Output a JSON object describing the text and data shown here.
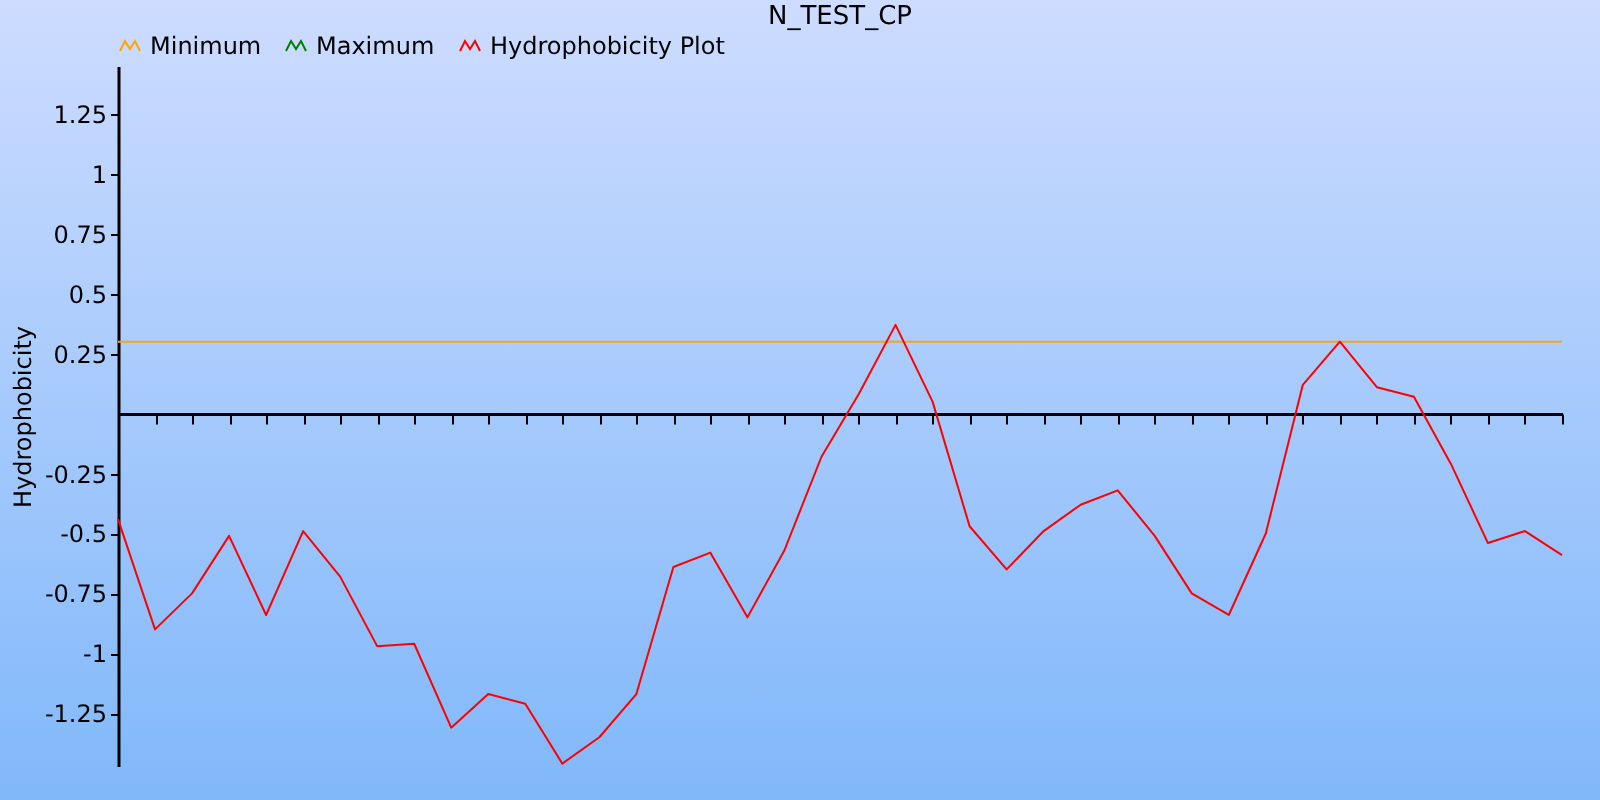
{
  "chart_data": {
    "type": "line",
    "title": "N_TEST_CP",
    "ylabel": "Hydrophobicity",
    "categories": [
      null,
      null,
      null,
      null,
      null,
      null,
      null,
      null,
      null,
      null,
      null,
      null,
      null,
      null,
      null,
      null,
      null,
      null,
      null,
      null,
      null,
      null,
      null,
      null,
      null,
      null,
      null,
      null,
      null,
      null,
      null,
      null,
      null,
      null,
      null,
      null,
      null,
      null,
      null,
      null
    ],
    "series": [
      {
        "name": "Minimum",
        "color": "#ffa500",
        "values": [
          0.3,
          0.3,
          0.3,
          0.3,
          0.3,
          0.3,
          0.3,
          0.3,
          0.3,
          0.3,
          0.3,
          0.3,
          0.3,
          0.3,
          0.3,
          0.3,
          0.3,
          0.3,
          0.3,
          0.3,
          0.3,
          0.3,
          0.3,
          0.3,
          0.3,
          0.3,
          0.3,
          0.3,
          0.3,
          0.3,
          0.3,
          0.3,
          0.3,
          0.3,
          0.3,
          0.3,
          0.3,
          0.3,
          0.3,
          0.3
        ]
      },
      {
        "name": "Maximum",
        "color": "#008000",
        "values": [
          null,
          null,
          null,
          null,
          null,
          null,
          null,
          null,
          null,
          null,
          null,
          null,
          null,
          null,
          null,
          null,
          null,
          null,
          null,
          null,
          null,
          null,
          null,
          null,
          null,
          null,
          null,
          null,
          null,
          null,
          null,
          null,
          null,
          null,
          null,
          null,
          null,
          null,
          null,
          null
        ]
      },
      {
        "name": "Hydrophobicity Plot",
        "color": "#ff0000",
        "values": [
          -0.44,
          -0.9,
          -0.75,
          -0.51,
          -0.84,
          -0.49,
          -0.68,
          -0.97,
          -0.96,
          -1.31,
          -1.17,
          -1.21,
          -1.46,
          -1.35,
          -1.17,
          -0.64,
          -0.58,
          -0.85,
          -0.57,
          -0.18,
          0.08,
          0.37,
          0.05,
          -0.47,
          -0.65,
          -0.49,
          -0.38,
          -0.32,
          -0.51,
          -0.75,
          -0.84,
          -0.5,
          0.12,
          0.3,
          0.11,
          0.07,
          -0.21,
          -0.54,
          -0.49,
          -0.59
        ]
      }
    ],
    "ylim": [
      -1.47,
      1.45
    ],
    "yticks": [
      -1.25,
      -1,
      -0.75,
      -0.5,
      -0.25,
      0.25,
      0.5,
      0.75,
      1,
      1.25
    ],
    "tick_labels": "y",
    "grid": false,
    "legend": "top",
    "marker": "none",
    "line_style": "solid"
  }
}
